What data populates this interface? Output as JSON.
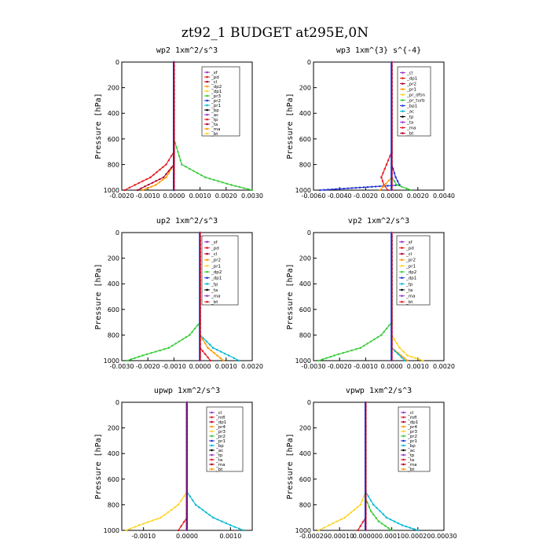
{
  "figure_title": "zt92_1  BUDGET at295E,0N",
  "colors": {
    "black": "#000000",
    "purple": "#9933cc",
    "red": "#e31a1c",
    "orange": "#ff9900",
    "yellow": "#ffd21f",
    "green": "#33cc33",
    "blue": "#1f2fd6",
    "cyan": "#00b8d4",
    "darkred": "#b2002d"
  },
  "chart_data": [
    {
      "type": "line",
      "title": "wp2   1xm^2/s^3",
      "ylabel": "Pressure [hPa]",
      "ylim": [
        1000,
        0
      ],
      "yticks": [
        0,
        200,
        400,
        600,
        800,
        1000
      ],
      "xlim": [
        -0.002,
        0.003
      ],
      "xticks": [
        "-0.0020",
        "-0.0010",
        "0.0000",
        "0.0010",
        "0.0020",
        "0.0030"
      ],
      "legend": [
        "_sf",
        "_pd",
        "_cl",
        "_dp2",
        "_dp1",
        "_pr3",
        "_pr2",
        "_pr1",
        "_bp",
        "_ac",
        "_tp",
        "_ta",
        "_ma",
        "_bt"
      ],
      "series": [
        {
          "name": "_pr3",
          "color": "#33cc33",
          "p": [
            0,
            600,
            800,
            900,
            960,
            1000
          ],
          "v": [
            0,
            0,
            0.0003,
            0.0012,
            0.0022,
            0.003
          ]
        },
        {
          "name": "_pr2",
          "color": "#e31a1c",
          "p": [
            0,
            700,
            800,
            900,
            960,
            1000
          ],
          "v": [
            0,
            0,
            -0.0003,
            -0.0009,
            -0.0015,
            -0.0019
          ]
        },
        {
          "name": "_pr1",
          "color": "#ff9900",
          "p": [
            0,
            800,
            900,
            960,
            1000
          ],
          "v": [
            0,
            0,
            -0.0003,
            -0.0007,
            -0.0012
          ]
        },
        {
          "name": "_dp1",
          "color": "#b2002d",
          "p": [
            0,
            800,
            900,
            1000
          ],
          "v": [
            0,
            0,
            -0.0004,
            -0.0014
          ]
        },
        {
          "name": "_cl",
          "color": "#9933cc",
          "p": [
            0,
            1000
          ],
          "v": [
            0,
            0
          ]
        },
        {
          "name": "_bp",
          "color": "#1f2fd6",
          "p": [
            0,
            1000
          ],
          "v": [
            0,
            0
          ]
        }
      ]
    },
    {
      "type": "line",
      "title": "wp3   1xm^{3} s^{-4}",
      "ylabel": "Pressure [hPa]",
      "ylim": [
        1000,
        0
      ],
      "yticks": [
        0,
        200,
        400,
        600,
        800,
        1000
      ],
      "xlim": [
        -0.006,
        0.004
      ],
      "xticks": [
        "-0.0060",
        "-0.0040",
        "-0.0020",
        "0.0000",
        "0.0020",
        "0.0040"
      ],
      "legend": [
        "_cl",
        "_dp1",
        "_pr2",
        "_pr1",
        "_pr_dfsn",
        "_pr_turb",
        "_bp1",
        "_ac",
        "_tp",
        "_ta",
        "_ma",
        "_bt"
      ],
      "series": [
        {
          "name": "_tp",
          "color": "#1f2fd6",
          "p": [
            0,
            800,
            900,
            960,
            1000
          ],
          "v": [
            0,
            0,
            0.0003,
            0.0006,
            -0.0055
          ]
        },
        {
          "name": "_pr1",
          "color": "#e31a1c",
          "p": [
            0,
            700,
            800,
            900,
            960,
            1000
          ],
          "v": [
            0,
            0,
            -0.0004,
            -0.0008,
            -0.0006,
            -0.0003
          ]
        },
        {
          "name": "_ac",
          "color": "#33cc33",
          "p": [
            0,
            900,
            960,
            1000
          ],
          "v": [
            0,
            0,
            0.0004,
            0.0015
          ]
        },
        {
          "name": "_pr2",
          "color": "#ff9900",
          "p": [
            0,
            900,
            1000
          ],
          "v": [
            0,
            0,
            -0.0009
          ]
        },
        {
          "name": "_cl",
          "color": "#9933cc",
          "p": [
            0,
            1000
          ],
          "v": [
            0,
            0
          ]
        }
      ]
    },
    {
      "type": "line",
      "title": "up2   1xm^2/s^3",
      "ylabel": "Pressure [hPa]",
      "ylim": [
        1000,
        0
      ],
      "yticks": [
        0,
        200,
        400,
        600,
        800,
        1000
      ],
      "xlim": [
        -0.003,
        0.002
      ],
      "xticks": [
        "-0.0030",
        "-0.0020",
        "-0.0010",
        "0.0000",
        "0.0010",
        "0.0020"
      ],
      "legend": [
        "_sf",
        "_pd",
        "_cl",
        "_pr2",
        "_pr1",
        "_dp2",
        "_dp1",
        "_tp",
        "_ta",
        "_ma",
        "_bt"
      ],
      "series": [
        {
          "name": "_dp1",
          "color": "#33cc33",
          "p": [
            0,
            700,
            800,
            900,
            960,
            1000
          ],
          "v": [
            0,
            0,
            -0.0004,
            -0.0012,
            -0.0022,
            -0.0028
          ]
        },
        {
          "name": "_tp",
          "color": "#00b8d4",
          "p": [
            0,
            800,
            900,
            960,
            1000
          ],
          "v": [
            0,
            0,
            0.0005,
            0.0011,
            0.0015
          ]
        },
        {
          "name": "_pr1",
          "color": "#ff9900",
          "p": [
            0,
            800,
            900,
            1000
          ],
          "v": [
            0,
            0,
            0.0003,
            0.0009
          ]
        },
        {
          "name": "_pr2",
          "color": "#e31a1c",
          "p": [
            0,
            900,
            1000
          ],
          "v": [
            0,
            0,
            0.0004
          ]
        },
        {
          "name": "_cl",
          "color": "#9933cc",
          "p": [
            0,
            1000
          ],
          "v": [
            0,
            0
          ]
        }
      ]
    },
    {
      "type": "line",
      "title": "vp2   1xm^2/s^3",
      "ylabel": "Pressure [hPa]",
      "ylim": [
        1000,
        0
      ],
      "yticks": [
        0,
        200,
        400,
        600,
        800,
        1000
      ],
      "xlim": [
        -0.003,
        0.002
      ],
      "xticks": [
        "-0.0030",
        "-0.0020",
        "-0.0010",
        "0.0000",
        "0.0010",
        "0.0020"
      ],
      "legend": [
        "_sf",
        "_pd",
        "_cl",
        "_pr2",
        "_pr1",
        "_dp2",
        "_dp1",
        "_tp",
        "_ta",
        "_ma",
        "_bt"
      ],
      "series": [
        {
          "name": "_dp1",
          "color": "#33cc33",
          "p": [
            0,
            700,
            800,
            900,
            960,
            1000
          ],
          "v": [
            0,
            0,
            -0.0004,
            -0.0012,
            -0.0022,
            -0.0028
          ]
        },
        {
          "name": "_pr1",
          "color": "#ffd21f",
          "p": [
            0,
            800,
            900,
            960,
            1000
          ],
          "v": [
            0,
            0,
            0.0003,
            0.0006,
            0.0012
          ]
        },
        {
          "name": "_pr2",
          "color": "#ff9900",
          "p": [
            0,
            900,
            1000
          ],
          "v": [
            0,
            0,
            0.0006
          ]
        },
        {
          "name": "_tp",
          "color": "#00b8d4",
          "p": [
            0,
            900,
            1000
          ],
          "v": [
            0,
            0,
            0.0005
          ]
        },
        {
          "name": "_cl",
          "color": "#9933cc",
          "p": [
            0,
            1000
          ],
          "v": [
            0,
            0
          ]
        }
      ]
    },
    {
      "type": "line",
      "title": "upwp   1xm^2/s^3",
      "ylabel": "Pressure [hPa]",
      "ylim": [
        1000,
        0
      ],
      "yticks": [
        0,
        200,
        400,
        600,
        800,
        1000
      ],
      "xlim": [
        -0.0015,
        0.0015
      ],
      "xticks": [
        "-0.0010",
        "0.0000",
        "0.0010"
      ],
      "legend": [
        "_cl",
        "_mfl",
        "_dp1",
        "_pr4",
        "_pr3",
        "_pr2",
        "_pr1",
        "_bp",
        "_ac",
        "_tp",
        "_ta",
        "_ma",
        "_bt"
      ],
      "series": [
        {
          "name": "_pr1",
          "color": "#ffd21f",
          "p": [
            0,
            700,
            800,
            900,
            960,
            1000
          ],
          "v": [
            0,
            0,
            -0.0002,
            -0.0006,
            -0.0011,
            -0.0014
          ]
        },
        {
          "name": "_tp",
          "color": "#00b8d4",
          "p": [
            0,
            700,
            800,
            900,
            960,
            1000
          ],
          "v": [
            0,
            0,
            0.0002,
            0.0006,
            0.001,
            0.0013
          ]
        },
        {
          "name": "_dp1",
          "color": "#e31a1c",
          "p": [
            0,
            900,
            1000
          ],
          "v": [
            0,
            0,
            -0.0002
          ]
        },
        {
          "name": "_cl",
          "color": "#9933cc",
          "p": [
            0,
            1000
          ],
          "v": [
            0,
            0
          ]
        }
      ]
    },
    {
      "type": "line",
      "title": "vpwp   1xm^2/s^3",
      "ylabel": "Pressure [hPa]",
      "ylim": [
        1000,
        0
      ],
      "yticks": [
        0,
        200,
        400,
        600,
        800,
        1000
      ],
      "xlim": [
        -0.0002,
        0.0003
      ],
      "xticks": [
        "-0.00020",
        "-0.00010",
        "0.00000",
        "0.00010",
        "0.00020",
        "0.00030"
      ],
      "legend": [
        "_cl",
        "_mfl",
        "_dp1",
        "_pr4",
        "_pr3",
        "_pr2",
        "_pr1",
        "_bp",
        "_ac",
        "_tp",
        "_ta",
        "_ma",
        "_bt"
      ],
      "series": [
        {
          "name": "_pr1",
          "color": "#ffd21f",
          "p": [
            0,
            700,
            800,
            900,
            960,
            1000
          ],
          "v": [
            0,
            0,
            -2e-05,
            -8e-05,
            -0.00014,
            -0.00018
          ]
        },
        {
          "name": "_tp",
          "color": "#00b8d4",
          "p": [
            0,
            700,
            800,
            900,
            960,
            1000
          ],
          "v": [
            0,
            0,
            3e-05,
            8e-05,
            0.00014,
            0.0002
          ]
        },
        {
          "name": "_ac",
          "color": "#33cc33",
          "p": [
            0,
            750,
            850,
            930,
            1000
          ],
          "v": [
            0,
            0,
            2e-05,
            5e-05,
            0.0001
          ]
        },
        {
          "name": "_dp1",
          "color": "#e31a1c",
          "p": [
            0,
            900,
            1000
          ],
          "v": [
            0,
            0,
            -3e-05
          ]
        },
        {
          "name": "_cl",
          "color": "#9933cc",
          "p": [
            0,
            1000
          ],
          "v": [
            0,
            0
          ]
        }
      ]
    }
  ]
}
